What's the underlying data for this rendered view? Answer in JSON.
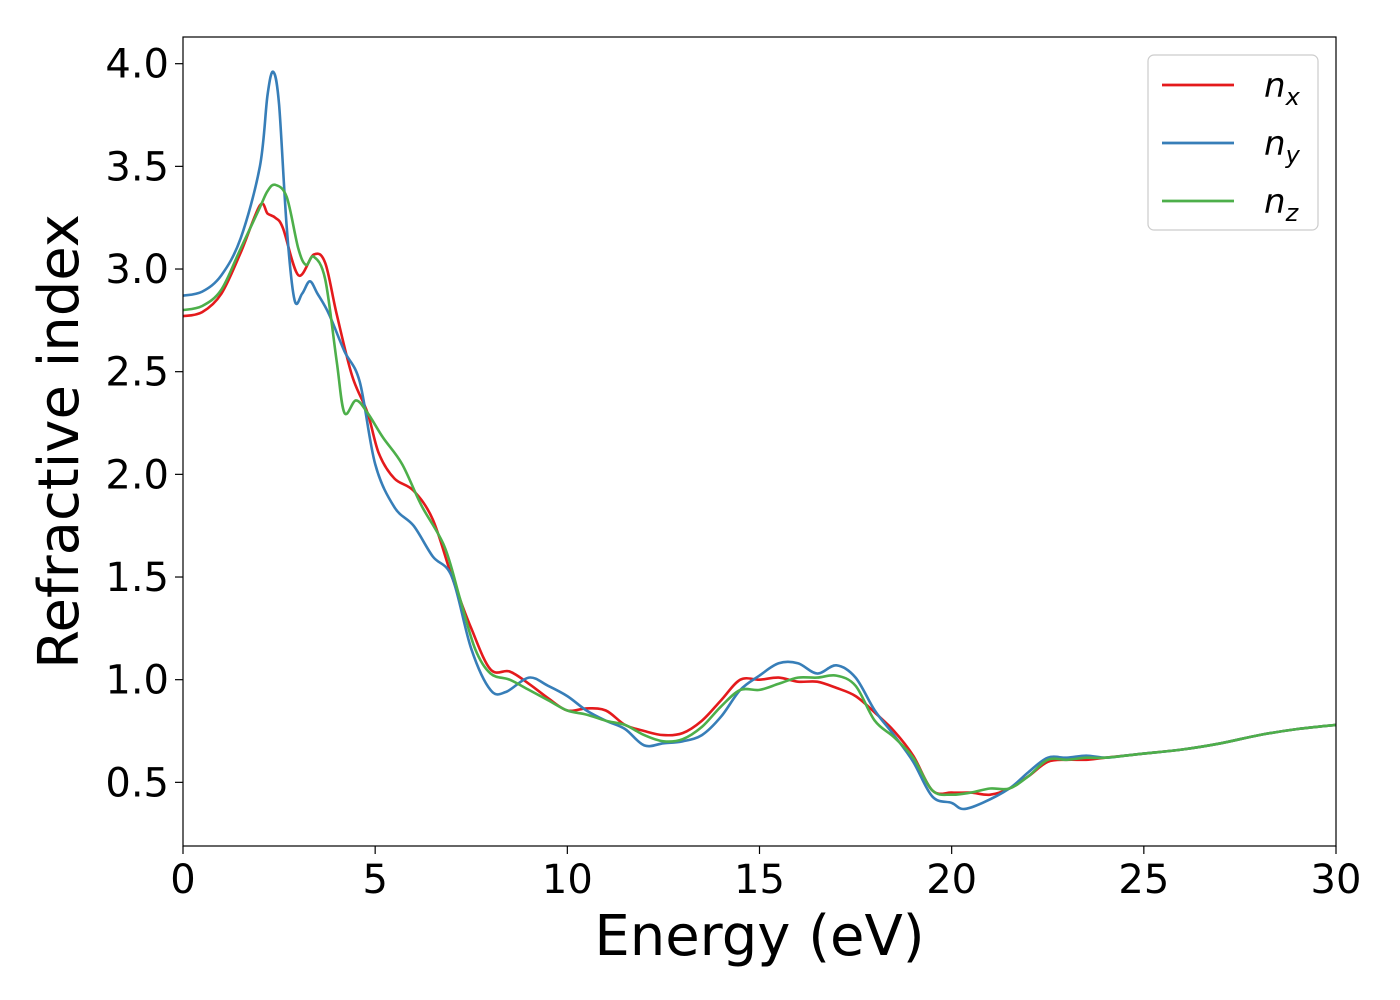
{
  "chart_data": {
    "type": "line",
    "title": "",
    "xlabel": "Energy (eV)",
    "ylabel": "Refractive index",
    "xlim": [
      0,
      30
    ],
    "ylim": [
      0.19,
      4.13
    ],
    "xticks": [
      "0",
      "5",
      "10",
      "15",
      "20",
      "25",
      "30"
    ],
    "yticks": [
      "0.5",
      "1.0",
      "1.5",
      "2.0",
      "2.5",
      "3.0",
      "3.5",
      "4.0"
    ],
    "grid": false,
    "legend_position": "top-right",
    "series": [
      {
        "name": "n_x",
        "label_main": "n",
        "label_sub": "x",
        "color": "#e41a1c",
        "points": [
          [
            0,
            2.77
          ],
          [
            0.5,
            2.79
          ],
          [
            1.0,
            2.88
          ],
          [
            1.5,
            3.08
          ],
          [
            2.0,
            3.31
          ],
          [
            2.2,
            3.27
          ],
          [
            2.4,
            3.25
          ],
          [
            2.6,
            3.2
          ],
          [
            3.0,
            2.97
          ],
          [
            3.4,
            3.07
          ],
          [
            3.7,
            3.03
          ],
          [
            4.0,
            2.78
          ],
          [
            4.4,
            2.48
          ],
          [
            4.8,
            2.3
          ],
          [
            5.1,
            2.1
          ],
          [
            5.5,
            1.98
          ],
          [
            6.0,
            1.92
          ],
          [
            6.5,
            1.78
          ],
          [
            7.0,
            1.5
          ],
          [
            7.5,
            1.25
          ],
          [
            8.0,
            1.05
          ],
          [
            8.5,
            1.04
          ],
          [
            9.0,
            0.98
          ],
          [
            9.5,
            0.91
          ],
          [
            10.0,
            0.85
          ],
          [
            10.5,
            0.86
          ],
          [
            11.0,
            0.85
          ],
          [
            11.5,
            0.78
          ],
          [
            12.0,
            0.75
          ],
          [
            12.5,
            0.73
          ],
          [
            13.0,
            0.74
          ],
          [
            13.5,
            0.8
          ],
          [
            14.0,
            0.9
          ],
          [
            14.5,
            1.0
          ],
          [
            15.0,
            1.0
          ],
          [
            15.5,
            1.01
          ],
          [
            16.0,
            0.99
          ],
          [
            16.5,
            0.99
          ],
          [
            17.0,
            0.96
          ],
          [
            17.5,
            0.92
          ],
          [
            18.0,
            0.84
          ],
          [
            18.5,
            0.75
          ],
          [
            19.0,
            0.63
          ],
          [
            19.5,
            0.46
          ],
          [
            20.0,
            0.45
          ],
          [
            20.5,
            0.45
          ],
          [
            21.0,
            0.44
          ],
          [
            21.5,
            0.47
          ],
          [
            22.0,
            0.53
          ],
          [
            22.5,
            0.6
          ],
          [
            23.0,
            0.61
          ],
          [
            23.5,
            0.61
          ],
          [
            24.0,
            0.62
          ],
          [
            25.0,
            0.64
          ],
          [
            26.0,
            0.66
          ],
          [
            27.0,
            0.69
          ],
          [
            28.0,
            0.73
          ],
          [
            29.0,
            0.76
          ],
          [
            30.0,
            0.78
          ]
        ]
      },
      {
        "name": "n_y",
        "label_main": "n",
        "label_sub": "y",
        "color": "#377eb8",
        "points": [
          [
            0,
            2.87
          ],
          [
            0.5,
            2.89
          ],
          [
            1.0,
            2.97
          ],
          [
            1.5,
            3.15
          ],
          [
            2.0,
            3.5
          ],
          [
            2.2,
            3.85
          ],
          [
            2.35,
            3.96
          ],
          [
            2.5,
            3.8
          ],
          [
            2.7,
            3.2
          ],
          [
            2.9,
            2.85
          ],
          [
            3.1,
            2.88
          ],
          [
            3.3,
            2.94
          ],
          [
            3.5,
            2.88
          ],
          [
            3.8,
            2.78
          ],
          [
            4.2,
            2.6
          ],
          [
            4.6,
            2.45
          ],
          [
            5.0,
            2.05
          ],
          [
            5.5,
            1.84
          ],
          [
            6.0,
            1.75
          ],
          [
            6.5,
            1.6
          ],
          [
            7.0,
            1.5
          ],
          [
            7.5,
            1.15
          ],
          [
            8.0,
            0.95
          ],
          [
            8.4,
            0.94
          ],
          [
            9.0,
            1.01
          ],
          [
            9.5,
            0.97
          ],
          [
            10.0,
            0.92
          ],
          [
            10.5,
            0.85
          ],
          [
            11.0,
            0.8
          ],
          [
            11.5,
            0.76
          ],
          [
            12.0,
            0.68
          ],
          [
            12.5,
            0.69
          ],
          [
            13.0,
            0.7
          ],
          [
            13.5,
            0.73
          ],
          [
            14.0,
            0.82
          ],
          [
            14.5,
            0.95
          ],
          [
            15.0,
            1.02
          ],
          [
            15.5,
            1.08
          ],
          [
            16.0,
            1.08
          ],
          [
            16.5,
            1.03
          ],
          [
            17.0,
            1.07
          ],
          [
            17.5,
            1.01
          ],
          [
            18.0,
            0.85
          ],
          [
            18.5,
            0.73
          ],
          [
            19.0,
            0.6
          ],
          [
            19.5,
            0.43
          ],
          [
            20.0,
            0.4
          ],
          [
            20.3,
            0.37
          ],
          [
            20.8,
            0.4
          ],
          [
            21.5,
            0.47
          ],
          [
            22.0,
            0.55
          ],
          [
            22.5,
            0.62
          ],
          [
            23.0,
            0.62
          ],
          [
            23.5,
            0.63
          ],
          [
            24.0,
            0.62
          ],
          [
            24.5,
            0.63
          ],
          [
            25.0,
            0.64
          ],
          [
            26.0,
            0.66
          ],
          [
            27.0,
            0.69
          ],
          [
            28.0,
            0.73
          ],
          [
            29.0,
            0.76
          ],
          [
            30.0,
            0.78
          ]
        ]
      },
      {
        "name": "n_z",
        "label_main": "n",
        "label_sub": "z",
        "color": "#4daf4a",
        "points": [
          [
            0,
            2.8
          ],
          [
            0.5,
            2.82
          ],
          [
            1.0,
            2.9
          ],
          [
            1.5,
            3.1
          ],
          [
            2.0,
            3.3
          ],
          [
            2.2,
            3.38
          ],
          [
            2.4,
            3.41
          ],
          [
            2.7,
            3.35
          ],
          [
            3.0,
            3.1
          ],
          [
            3.2,
            3.02
          ],
          [
            3.4,
            3.06
          ],
          [
            3.7,
            2.95
          ],
          [
            4.0,
            2.55
          ],
          [
            4.2,
            2.3
          ],
          [
            4.5,
            2.36
          ],
          [
            4.8,
            2.3
          ],
          [
            5.2,
            2.18
          ],
          [
            5.7,
            2.05
          ],
          [
            6.2,
            1.85
          ],
          [
            6.8,
            1.65
          ],
          [
            7.2,
            1.4
          ],
          [
            7.6,
            1.15
          ],
          [
            8.0,
            1.03
          ],
          [
            8.5,
            1.0
          ],
          [
            9.0,
            0.95
          ],
          [
            9.5,
            0.9
          ],
          [
            10.0,
            0.85
          ],
          [
            10.5,
            0.83
          ],
          [
            11.0,
            0.8
          ],
          [
            11.5,
            0.78
          ],
          [
            12.0,
            0.73
          ],
          [
            12.5,
            0.7
          ],
          [
            13.0,
            0.71
          ],
          [
            13.5,
            0.77
          ],
          [
            14.0,
            0.87
          ],
          [
            14.5,
            0.95
          ],
          [
            15.0,
            0.95
          ],
          [
            15.5,
            0.98
          ],
          [
            16.0,
            1.01
          ],
          [
            16.5,
            1.01
          ],
          [
            17.0,
            1.02
          ],
          [
            17.5,
            0.97
          ],
          [
            18.0,
            0.8
          ],
          [
            18.5,
            0.72
          ],
          [
            19.0,
            0.62
          ],
          [
            19.5,
            0.46
          ],
          [
            20.0,
            0.44
          ],
          [
            20.5,
            0.45
          ],
          [
            21.0,
            0.47
          ],
          [
            21.5,
            0.47
          ],
          [
            22.0,
            0.53
          ],
          [
            22.5,
            0.61
          ],
          [
            23.0,
            0.61
          ],
          [
            23.5,
            0.62
          ],
          [
            24.0,
            0.62
          ],
          [
            25.0,
            0.64
          ],
          [
            26.0,
            0.66
          ],
          [
            27.0,
            0.69
          ],
          [
            28.0,
            0.73
          ],
          [
            29.0,
            0.76
          ],
          [
            30.0,
            0.78
          ]
        ]
      }
    ]
  }
}
